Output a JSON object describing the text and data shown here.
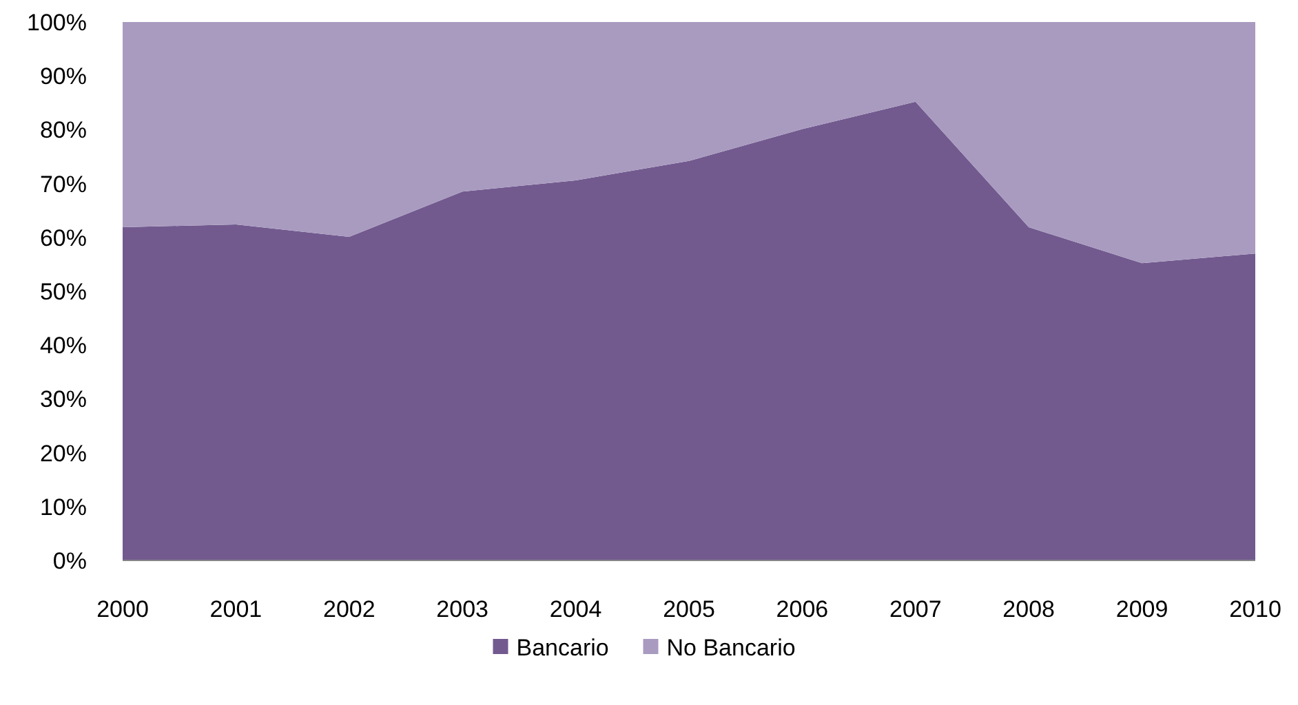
{
  "chart_data": {
    "type": "area",
    "stacked": true,
    "categories": [
      "2000",
      "2001",
      "2002",
      "2003",
      "2004",
      "2005",
      "2006",
      "2007",
      "2008",
      "2009",
      "2010"
    ],
    "series": [
      {
        "name": "Bancario",
        "color": "#725a8f",
        "values": [
          61.9,
          62.4,
          60.1,
          68.5,
          70.6,
          74.2,
          80.1,
          85.2,
          61.9,
          55.2,
          57.0
        ]
      },
      {
        "name": "No Bancario",
        "color": "#a99bbf",
        "values": [
          38.1,
          37.6,
          39.9,
          31.5,
          29.4,
          25.8,
          19.9,
          14.8,
          38.1,
          44.8,
          43.0
        ]
      }
    ],
    "ylim": [
      0,
      100
    ],
    "yticks": [
      {
        "value": 0,
        "label": "0%"
      },
      {
        "value": 10,
        "label": "10%"
      },
      {
        "value": 20,
        "label": "20%"
      },
      {
        "value": 30,
        "label": "30%"
      },
      {
        "value": 40,
        "label": "40%"
      },
      {
        "value": 50,
        "label": "50%"
      },
      {
        "value": 60,
        "label": "60%"
      },
      {
        "value": 70,
        "label": "70%"
      },
      {
        "value": 80,
        "label": "80%"
      },
      {
        "value": 90,
        "label": "90%"
      },
      {
        "value": 100,
        "label": "100%"
      }
    ],
    "legend": "bottom"
  }
}
